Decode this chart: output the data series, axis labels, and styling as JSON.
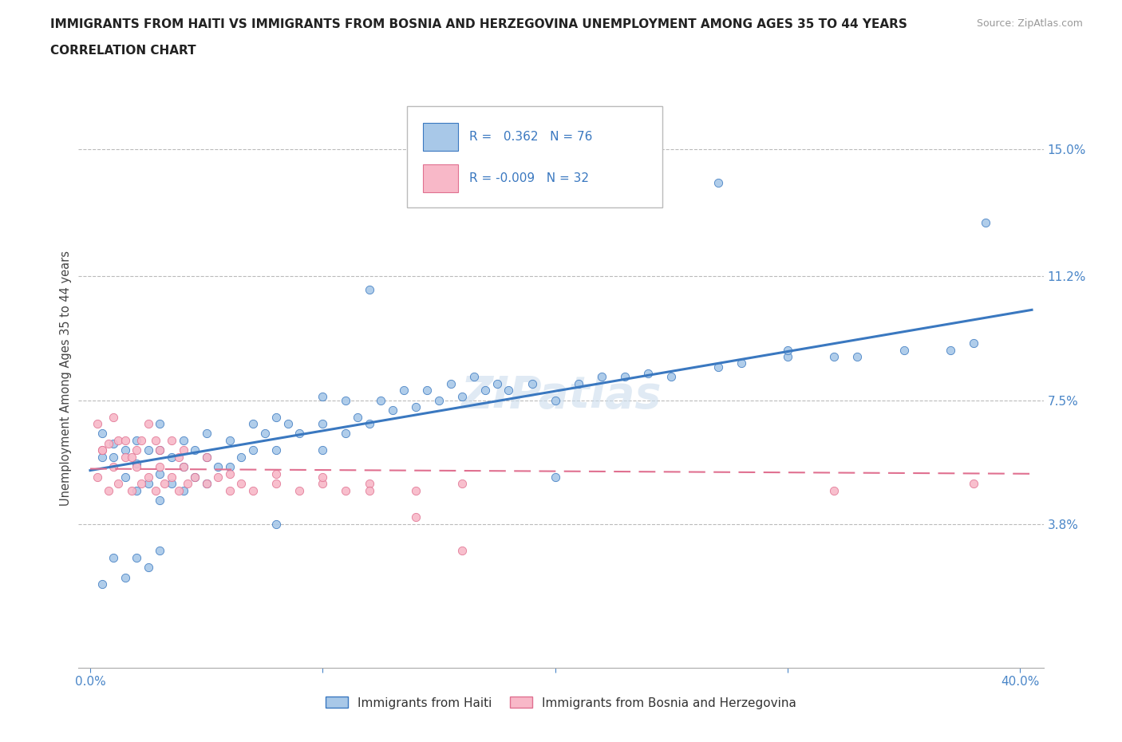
{
  "title_line1": "IMMIGRANTS FROM HAITI VS IMMIGRANTS FROM BOSNIA AND HERZEGOVINA UNEMPLOYMENT AMONG AGES 35 TO 44 YEARS",
  "title_line2": "CORRELATION CHART",
  "source_text": "Source: ZipAtlas.com",
  "ylabel": "Unemployment Among Ages 35 to 44 years",
  "xlim": [
    -0.005,
    0.41
  ],
  "ylim": [
    -0.005,
    0.168
  ],
  "xtick_positions": [
    0.0,
    0.1,
    0.2,
    0.3,
    0.4
  ],
  "xtick_labels": [
    "0.0%",
    "",
    "",
    "",
    "40.0%"
  ],
  "ytick_positions": [
    0.038,
    0.075,
    0.112,
    0.15
  ],
  "ytick_labels": [
    "3.8%",
    "7.5%",
    "11.2%",
    "15.0%"
  ],
  "haiti_color": "#a8c8e8",
  "haiti_line_color": "#3a78c0",
  "bosnia_color": "#f8b8c8",
  "bosnia_line_color": "#e07090",
  "watermark": "ZIPatlas",
  "legend_label_haiti": "Immigrants from Haiti",
  "legend_label_bosnia": "Immigrants from Bosnia and Herzegovina",
  "haiti_x": [
    0.005,
    0.005,
    0.01,
    0.01,
    0.015,
    0.015,
    0.02,
    0.02,
    0.02,
    0.025,
    0.025,
    0.03,
    0.03,
    0.03,
    0.03,
    0.035,
    0.035,
    0.04,
    0.04,
    0.04,
    0.045,
    0.045,
    0.05,
    0.05,
    0.05,
    0.055,
    0.06,
    0.06,
    0.065,
    0.07,
    0.07,
    0.075,
    0.08,
    0.08,
    0.085,
    0.09,
    0.1,
    0.1,
    0.1,
    0.11,
    0.11,
    0.115,
    0.12,
    0.125,
    0.13,
    0.135,
    0.14,
    0.145,
    0.15,
    0.155,
    0.16,
    0.165,
    0.17,
    0.175,
    0.18,
    0.19,
    0.2,
    0.21,
    0.22,
    0.23,
    0.24,
    0.25,
    0.27,
    0.28,
    0.3,
    0.32,
    0.33,
    0.35,
    0.37,
    0.38,
    0.12,
    0.27,
    0.385,
    0.3,
    0.2,
    0.08
  ],
  "haiti_y": [
    0.058,
    0.065,
    0.058,
    0.062,
    0.052,
    0.06,
    0.048,
    0.056,
    0.063,
    0.05,
    0.06,
    0.045,
    0.053,
    0.06,
    0.068,
    0.05,
    0.058,
    0.048,
    0.055,
    0.063,
    0.052,
    0.06,
    0.05,
    0.058,
    0.065,
    0.055,
    0.055,
    0.063,
    0.058,
    0.06,
    0.068,
    0.065,
    0.06,
    0.07,
    0.068,
    0.065,
    0.06,
    0.068,
    0.076,
    0.065,
    0.075,
    0.07,
    0.068,
    0.075,
    0.072,
    0.078,
    0.073,
    0.078,
    0.075,
    0.08,
    0.076,
    0.082,
    0.078,
    0.08,
    0.078,
    0.08,
    0.075,
    0.08,
    0.082,
    0.082,
    0.083,
    0.082,
    0.085,
    0.086,
    0.088,
    0.088,
    0.088,
    0.09,
    0.09,
    0.092,
    0.108,
    0.14,
    0.128,
    0.09,
    0.052,
    0.038
  ],
  "bosnia_x": [
    0.003,
    0.005,
    0.008,
    0.01,
    0.012,
    0.015,
    0.018,
    0.02,
    0.022,
    0.025,
    0.028,
    0.03,
    0.032,
    0.035,
    0.038,
    0.04,
    0.042,
    0.045,
    0.05,
    0.055,
    0.06,
    0.065,
    0.07,
    0.08,
    0.09,
    0.1,
    0.11,
    0.12,
    0.14,
    0.16,
    0.32,
    0.38
  ],
  "bosnia_y": [
    0.052,
    0.06,
    0.048,
    0.055,
    0.05,
    0.058,
    0.048,
    0.055,
    0.05,
    0.052,
    0.048,
    0.055,
    0.05,
    0.052,
    0.048,
    0.055,
    0.05,
    0.052,
    0.05,
    0.052,
    0.048,
    0.05,
    0.048,
    0.05,
    0.048,
    0.05,
    0.048,
    0.05,
    0.048,
    0.05,
    0.048,
    0.05
  ],
  "haiti_extra_x": [
    0.005,
    0.01,
    0.015,
    0.02,
    0.025,
    0.03
  ],
  "haiti_extra_y": [
    0.02,
    0.028,
    0.022,
    0.028,
    0.025,
    0.03
  ],
  "bosnia_extra_x": [
    0.003,
    0.005,
    0.008,
    0.01,
    0.012,
    0.015,
    0.018,
    0.02,
    0.022,
    0.025,
    0.028,
    0.03,
    0.035,
    0.038,
    0.04,
    0.05,
    0.06,
    0.08,
    0.1,
    0.12,
    0.14,
    0.16
  ],
  "bosnia_extra_y": [
    0.068,
    0.06,
    0.062,
    0.07,
    0.063,
    0.063,
    0.058,
    0.06,
    0.063,
    0.068,
    0.063,
    0.06,
    0.063,
    0.058,
    0.06,
    0.058,
    0.053,
    0.053,
    0.052,
    0.048,
    0.04,
    0.03
  ],
  "haiti_trend_x0": 0.0,
  "haiti_trend_x1": 0.405,
  "haiti_trend_y0": 0.054,
  "haiti_trend_y1": 0.102,
  "bosnia_trend_x0": 0.0,
  "bosnia_trend_x1": 0.405,
  "bosnia_trend_y0": 0.0545,
  "bosnia_trend_y1": 0.053
}
